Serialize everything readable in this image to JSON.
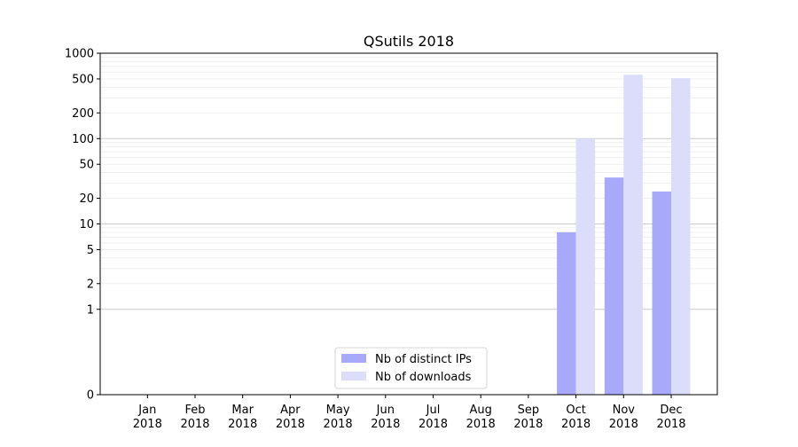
{
  "chart_data": {
    "type": "bar",
    "title": "QSutils 2018",
    "xlabel": "",
    "ylabel": "",
    "y_scale": "symlog",
    "ylim": [
      0,
      1000
    ],
    "y_ticks": [
      0,
      1,
      2,
      5,
      10,
      20,
      50,
      100,
      200,
      500,
      1000
    ],
    "y_tick_labels": [
      "0",
      "1",
      "2",
      "5",
      "10",
      "20",
      "50",
      "100",
      "200",
      "500",
      "1000"
    ],
    "grid": "horizontal",
    "legend_position": "bottom-center",
    "categories": [
      {
        "month": "Jan",
        "year": "2018"
      },
      {
        "month": "Feb",
        "year": "2018"
      },
      {
        "month": "Mar",
        "year": "2018"
      },
      {
        "month": "Apr",
        "year": "2018"
      },
      {
        "month": "May",
        "year": "2018"
      },
      {
        "month": "Jun",
        "year": "2018"
      },
      {
        "month": "Jul",
        "year": "2018"
      },
      {
        "month": "Aug",
        "year": "2018"
      },
      {
        "month": "Sep",
        "year": "2018"
      },
      {
        "month": "Oct",
        "year": "2018"
      },
      {
        "month": "Nov",
        "year": "2018"
      },
      {
        "month": "Dec",
        "year": "2018"
      }
    ],
    "series": [
      {
        "name": "Nb of distinct IPs",
        "color": "#a9a9fb",
        "values": [
          0,
          0,
          0,
          0,
          0,
          0,
          0,
          0,
          0,
          8,
          35,
          24
        ]
      },
      {
        "name": "Nb of downloads",
        "color": "#dcdcfb",
        "values": [
          0,
          0,
          0,
          0,
          0,
          0,
          0,
          0,
          0,
          100,
          560,
          510
        ]
      }
    ]
  }
}
